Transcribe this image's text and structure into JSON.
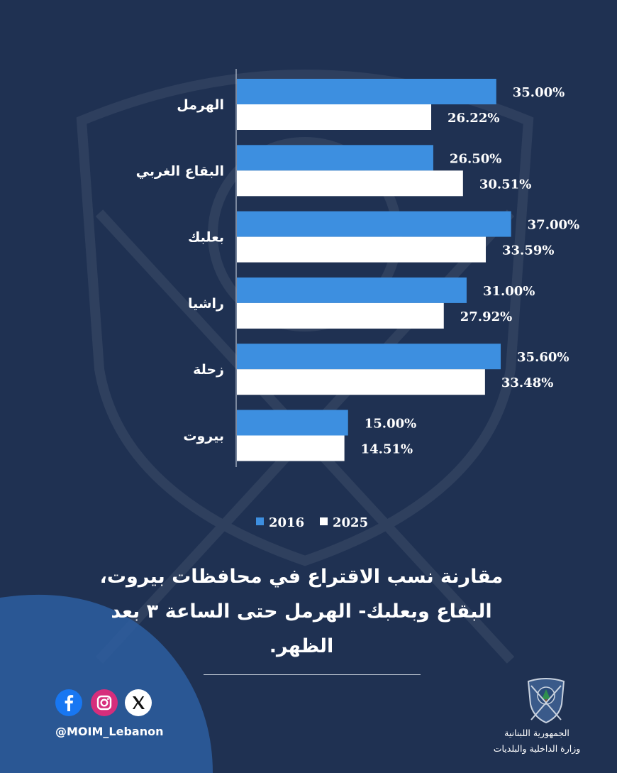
{
  "colors": {
    "background": "#1f3152",
    "series_2016": "#3d8fe0",
    "series_2025": "#ffffff",
    "footer_curve": "#2d5ea0"
  },
  "chart_data": {
    "type": "bar",
    "orientation": "horizontal",
    "categories": [
      "الهرمل",
      "البقاع الغربي",
      "بعلبك",
      "راشيا",
      "زحلة",
      "بيروت"
    ],
    "series": [
      {
        "name": "2016",
        "values": [
          35.0,
          26.5,
          37.0,
          31.0,
          35.6,
          15.0
        ],
        "labels": [
          "35.00%",
          "26.50%",
          "37.00%",
          "31.00%",
          "35.60%",
          "15.00%"
        ]
      },
      {
        "name": "2025",
        "values": [
          26.22,
          30.51,
          33.59,
          27.92,
          33.48,
          14.51
        ],
        "labels": [
          "26.22%",
          "30.51%",
          "33.59%",
          "27.92%",
          "33.48%",
          "14.51%"
        ]
      }
    ],
    "xlim": [
      0,
      37.5
    ],
    "legend_position": "bottom",
    "grid": false
  },
  "title_lines": [
    "مقارنة نسب الاقتراع في محافظات بيروت،",
    "البقاع وبعلبك- الهرمل حتى الساعة ٣ بعد",
    "الظهر."
  ],
  "footer": {
    "handle": "@MOIM_Lebanon",
    "social_icons": [
      "facebook-icon",
      "instagram-icon",
      "x-icon"
    ],
    "ministry_line1": "الجمهورية اللبنانية",
    "ministry_line2": "وزارة الداخلية والبلديات"
  }
}
